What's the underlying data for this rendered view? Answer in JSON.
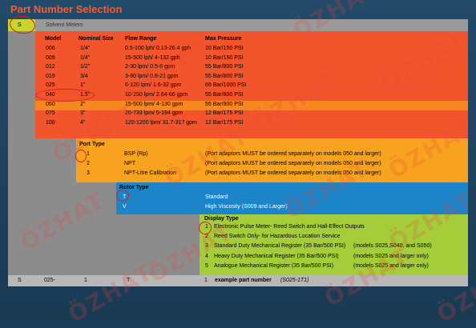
{
  "title": "Part Number Selection",
  "top": {
    "code": "S",
    "label": "Solvent Meters"
  },
  "model_headers": {
    "model": "Model",
    "size": "Nominal Size",
    "flow": "Flow Range",
    "pressure": "Max Pressure"
  },
  "models": [
    {
      "model": "006",
      "size": "1/4\"",
      "flow": "0.5-100 lph/ 0.13-26.4 gph",
      "pressure": "10 Bar/150 PSI"
    },
    {
      "model": "009",
      "size": "1/4\"",
      "flow": "15-500 lph/ 4-132 gph",
      "pressure": "10 Bar/150 PSI"
    },
    {
      "model": "012",
      "size": "1/2\"",
      "flow": "2-30 lpm/ 0.5-8 gpm",
      "pressure": "55 Bar/800 PSI"
    },
    {
      "model": "019",
      "size": "3/4",
      "flow": "3-80 lpm/ 0.8-21 gpm",
      "pressure": "55 Bar/800 PSI"
    },
    {
      "model": "025",
      "size": "1\"",
      "flow": "6-120 lpm/ 1.6-32 gpm",
      "pressure": "69 Bar/1000 PSI"
    },
    {
      "model": "040",
      "size": "1.5\"",
      "flow": "10-250 lpm/ 2.64-66 gpm",
      "pressure": "55 Bar/800 PSI"
    },
    {
      "model": "050",
      "size": "2\"",
      "flow": "15-500 lpm/ 4-130 gpm",
      "pressure": "55 Bar/800 PSI"
    },
    {
      "model": "075",
      "size": "3\"",
      "flow": "20-733 lpm/ 5-194 gpm",
      "pressure": "12 Bar/175 PSI"
    },
    {
      "model": "100",
      "size": "4\"",
      "flow": "120-1200 lpm/ 31.7-317 gpm",
      "pressure": "12 Bar/175 PSI"
    }
  ],
  "port": {
    "header": "Port Type",
    "rows": [
      {
        "code": "1",
        "name": "BSP (Rp)",
        "note": "(Port adaptors MUST be ordered separately on models 050 and larger)"
      },
      {
        "code": "2",
        "name": "NPT",
        "note": "(Port adaptors MUST be ordered separately on models 050 and larger)"
      },
      {
        "code": "3",
        "name": "NPT-Litre Calibration",
        "note": "(Port adaptors MUST be ordered separately on models 050 and larger)"
      }
    ]
  },
  "rotor": {
    "header": "Rotor Type",
    "rows": [
      {
        "code": "T",
        "name": "Standard"
      },
      {
        "code": "V",
        "name": "High Viscosity (S009 and Larger)"
      }
    ]
  },
  "display": {
    "header": "Display Type",
    "rows": [
      {
        "code": "1",
        "name": "Electronic Pulse Meter- Reed Switch and Hall-Effect Outputs",
        "note": ""
      },
      {
        "code": "2",
        "name": "Reed Switch Only- for Hazardous Location Service",
        "note": ""
      },
      {
        "code": "3",
        "name": "Standard Duty Mechanical Register (35 Bar/500 PSI)",
        "note": "(models S025,S040, and S050)"
      },
      {
        "code": "4",
        "name": "Heavy Duty Mechanical Register (35 Bar/500 PSI)",
        "note": "(models S025 and larger only)"
      },
      {
        "code": "5",
        "name": "Analogue Mechanical Register (35 Bar/500 PSI)",
        "note": "(models S025 and larger only)"
      }
    ]
  },
  "example": {
    "s": "S",
    "model": "025-",
    "port": "1",
    "rotor": "T",
    "display": "1",
    "text": "example part number",
    "part": "(S025-1T1)"
  },
  "watermark": "ÖZHAT",
  "colors": {
    "orange_red": "#f2552b",
    "amber": "#f8a31f",
    "blue": "#1c84c8",
    "green": "#a5cd3a",
    "grey": "#8c8c8c",
    "title": "#ff5a2a"
  }
}
